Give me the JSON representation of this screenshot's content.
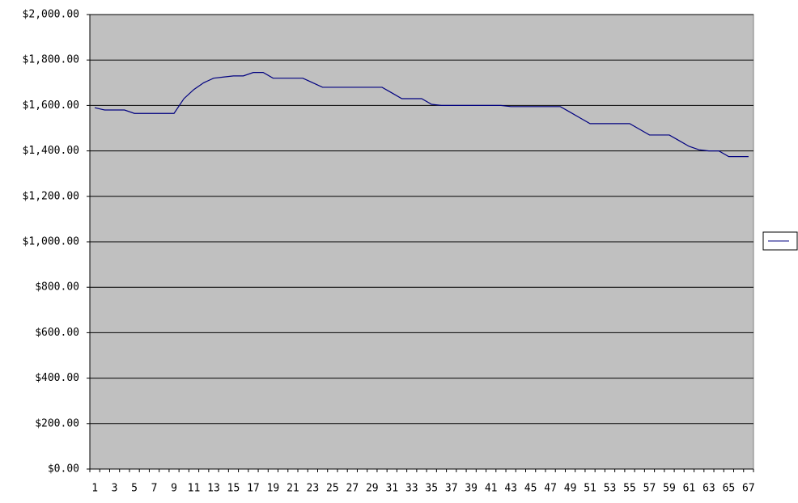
{
  "chart_data": {
    "type": "line",
    "categories": [
      "1",
      null,
      "3",
      null,
      "5",
      null,
      "7",
      null,
      "9",
      null,
      "11",
      null,
      "13",
      null,
      "15",
      null,
      "17",
      null,
      "19",
      null,
      "21",
      null,
      "23",
      null,
      "25",
      null,
      "27",
      null,
      "29",
      null,
      "31",
      null,
      "33",
      null,
      "35",
      null,
      "37",
      null,
      "39",
      null,
      "41",
      null,
      "43",
      null,
      "45",
      null,
      "47",
      null,
      "49",
      null,
      "51",
      null,
      "53",
      null,
      "55",
      null,
      "57",
      null,
      "59",
      null,
      "61",
      null,
      "63",
      null,
      "65",
      null,
      "67"
    ],
    "series": [
      {
        "color": "#000080",
        "values": [
          1590,
          1580,
          1580,
          1580,
          1565,
          1565,
          1565,
          1565,
          1565,
          1630,
          1670,
          1700,
          1720,
          1725,
          1730,
          1730,
          1745,
          1745,
          1720,
          1720,
          1720,
          1720,
          1700,
          1680,
          1680,
          1680,
          1680,
          1680,
          1680,
          1680,
          1655,
          1630,
          1630,
          1630,
          1605,
          1600,
          1600,
          1600,
          1600,
          1600,
          1600,
          1600,
          1595,
          1595,
          1595,
          1595,
          1595,
          1595,
          1570,
          1545,
          1520,
          1520,
          1520,
          1520,
          1520,
          1495,
          1470,
          1470,
          1470,
          1445,
          1420,
          1405,
          1400,
          1400,
          1375,
          1375,
          1375
        ]
      }
    ],
    "ylim": [
      0,
      2000
    ],
    "yticks": [
      {
        "value": 0,
        "label": "$0.00"
      },
      {
        "value": 200,
        "label": "$200.00"
      },
      {
        "value": 400,
        "label": "$400.00"
      },
      {
        "value": 600,
        "label": "$600.00"
      },
      {
        "value": 800,
        "label": "$800.00"
      },
      {
        "value": 1000,
        "label": "$1,000.00"
      },
      {
        "value": 1200,
        "label": "$1,200.00"
      },
      {
        "value": 1400,
        "label": "$1,400.00"
      },
      {
        "value": 1600,
        "label": "$1,600.00"
      },
      {
        "value": 1800,
        "label": "$1,800.00"
      },
      {
        "value": 2000,
        "label": "$2,000.00"
      }
    ],
    "grid": true,
    "plot_color": "#c0c0c0",
    "legend": "right"
  }
}
